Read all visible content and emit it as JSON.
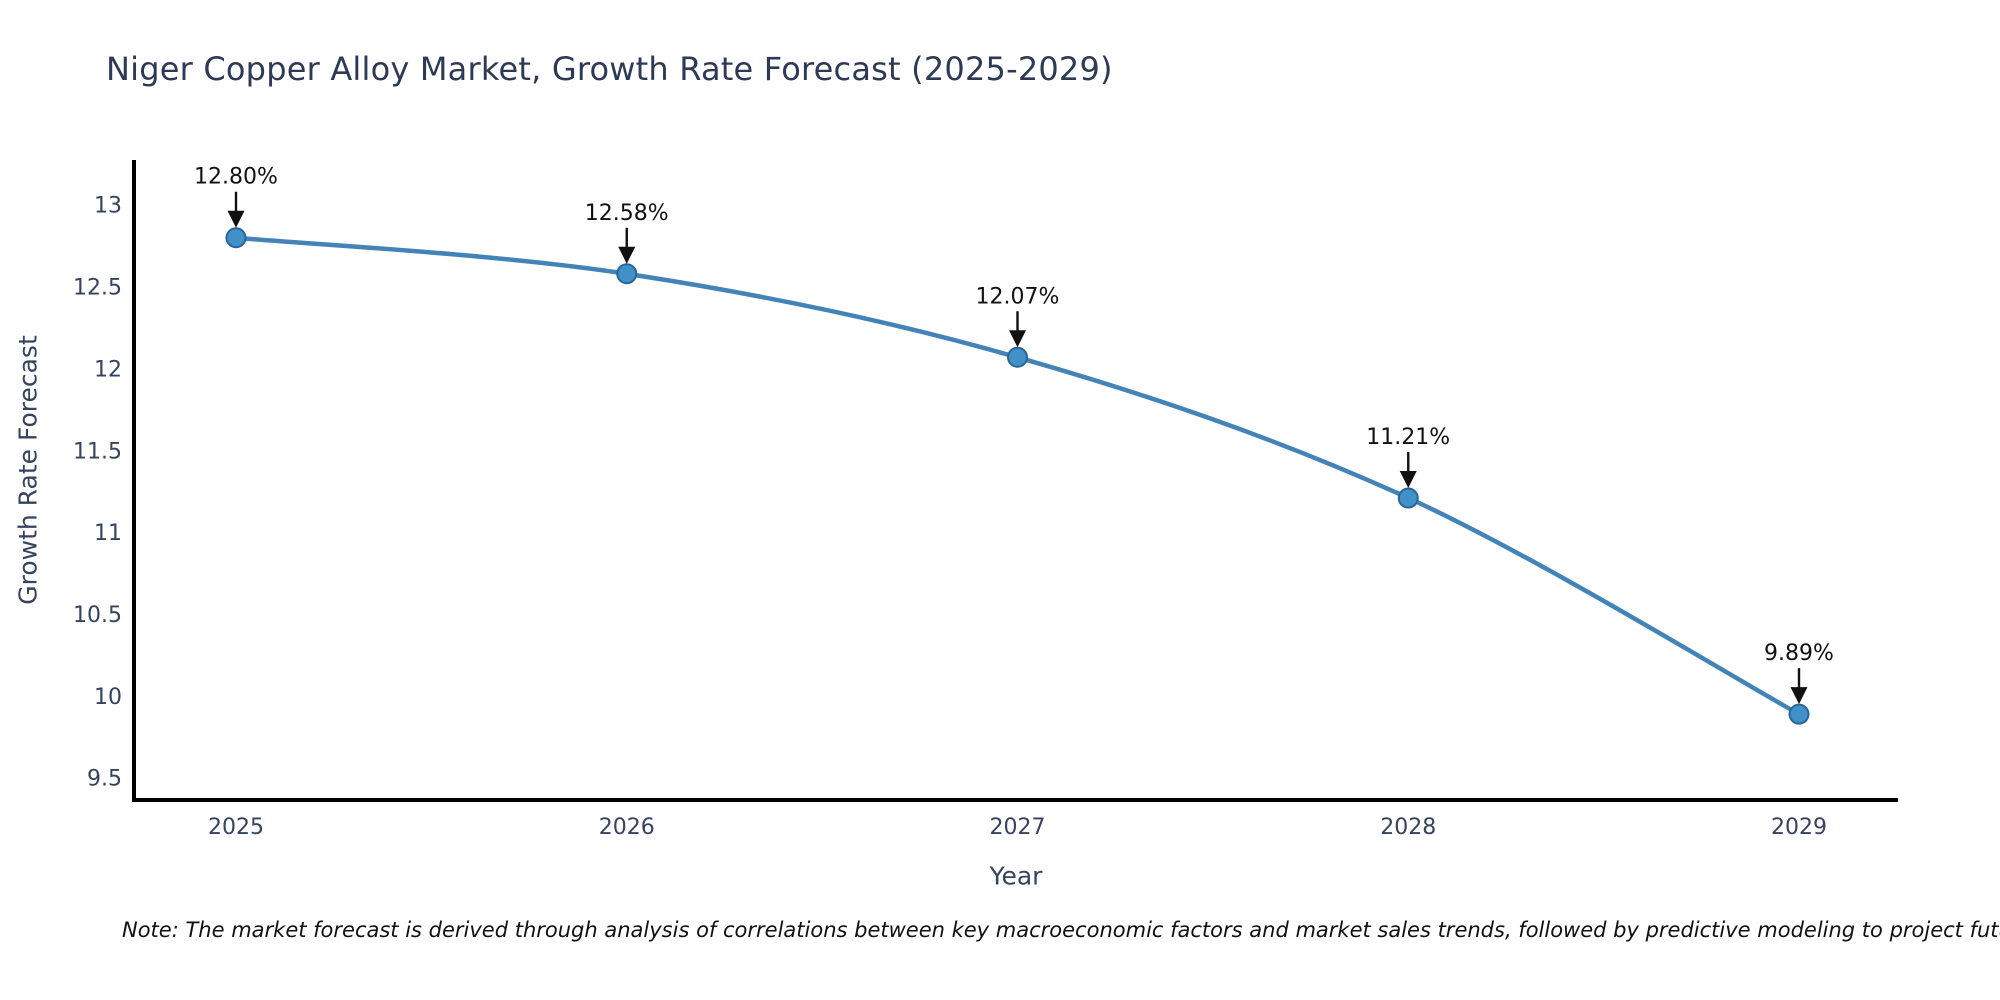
{
  "title": "Niger Copper Alloy Market, Growth Rate Forecast (2025-2029)",
  "note": "Note: The market forecast is derived through analysis of correlations between key macroeconomic factors and market sales trends, followed by predictive modeling to project future sal",
  "chart_data": {
    "type": "line",
    "title": "Niger Copper Alloy Market, Growth Rate Forecast (2025-2029)",
    "xlabel": "Year",
    "ylabel": "Growth Rate Forecast",
    "categories": [
      "2025",
      "2026",
      "2027",
      "2028",
      "2029"
    ],
    "series": [
      {
        "name": "Growth Rate Forecast",
        "values": [
          12.8,
          12.58,
          12.07,
          11.21,
          9.89
        ]
      }
    ],
    "point_labels": [
      "12.80%",
      "12.58%",
      "12.07%",
      "11.21%",
      "9.89%"
    ],
    "y_ticks": [
      13,
      12.5,
      12,
      11.5,
      11,
      10.5,
      10,
      9.5
    ],
    "ylim": [
      9.37,
      13.28
    ],
    "grid": false,
    "legend": false,
    "colors": {
      "line": "#4383b8",
      "marker_fill": "#4191c9",
      "marker_edge": "#2a6599",
      "spine": "#000000",
      "axis_text": "#36435e",
      "title_text": "#2e3a55",
      "annotation": "#111111"
    }
  }
}
